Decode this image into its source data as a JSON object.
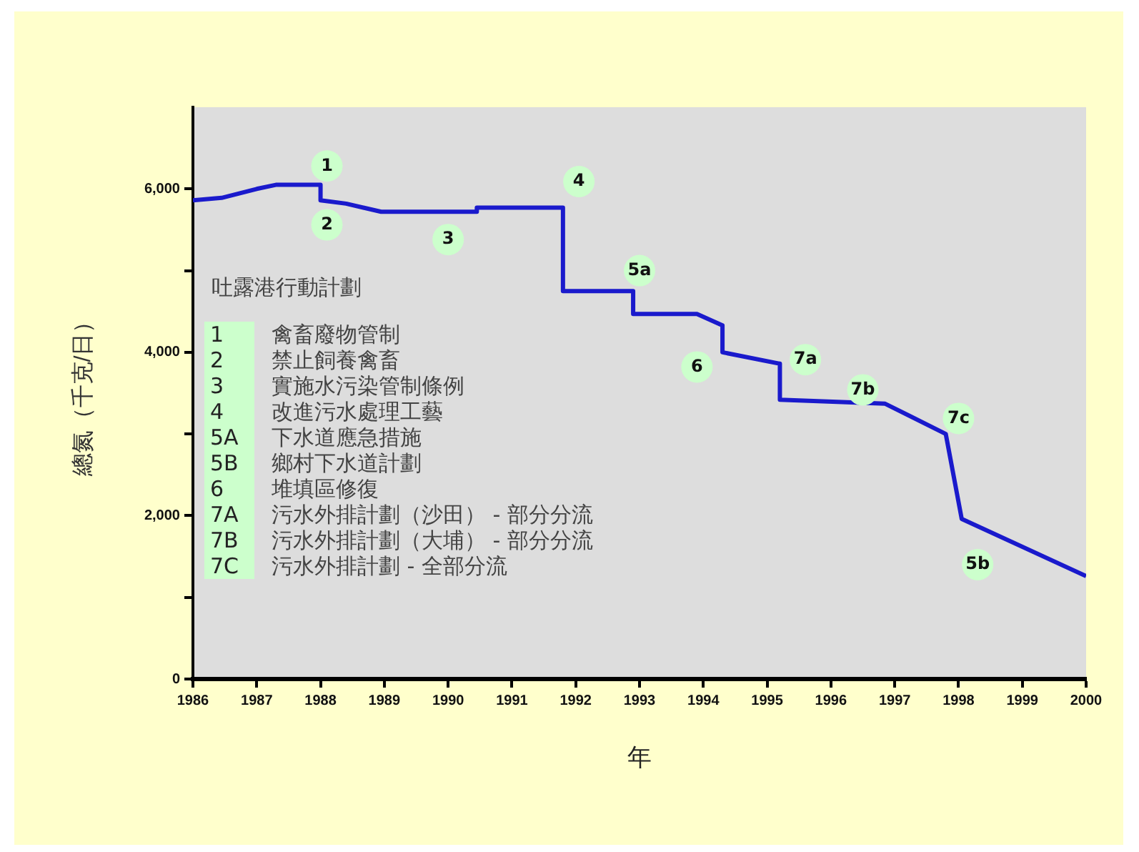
{
  "chart_data": {
    "type": "line",
    "xlabel": "年",
    "ylabel": "總氮（千克/日）",
    "x": [
      1986,
      1986.45,
      1987,
      1987.3,
      1988,
      1988,
      1988.4,
      1988.95,
      1990.45,
      1990.45,
      1991.8,
      1991.8,
      1992.9,
      1992.9,
      1993.9,
      1994.3,
      1994.3,
      1995.2,
      1995.2,
      1996.85,
      1997.8,
      1998.05,
      2000
    ],
    "series": [
      {
        "color": "#1a1acc",
        "values": [
          5860,
          5890,
          6000,
          6050,
          6050,
          5860,
          5820,
          5720,
          5720,
          5770,
          5770,
          4750,
          4750,
          4470,
          4470,
          4330,
          4000,
          3860,
          3420,
          3370,
          3000,
          1960,
          1260
        ]
      }
    ],
    "xlim": [
      1986,
      2000
    ],
    "xticks": [
      1986,
      1987,
      1988,
      1989,
      1990,
      1991,
      1992,
      1993,
      1994,
      1995,
      1996,
      1997,
      1998,
      1999,
      2000
    ],
    "ylim": [
      0,
      7000
    ],
    "yticks": [
      0,
      {
        "value": 1000,
        "label": null
      },
      {
        "value": 2000,
        "label": "2,000"
      },
      {
        "value": 3000,
        "label": null
      },
      {
        "value": 4000,
        "label": "4,000"
      },
      {
        "value": 5000,
        "label": null
      },
      {
        "value": 6000,
        "label": "6,000"
      }
    ],
    "grid": false,
    "legend": false,
    "marker": "none",
    "line_style": "solid",
    "annotations": [
      {
        "text": "1",
        "x": 1988.1,
        "y": 6280
      },
      {
        "text": "2",
        "x": 1988.1,
        "y": 5560
      },
      {
        "text": "3",
        "x": 1990,
        "y": 5380
      },
      {
        "text": "4",
        "x": 1992.05,
        "y": 6090
      },
      {
        "text": "5a",
        "x": 1993,
        "y": 5000
      },
      {
        "text": "6",
        "x": 1993.9,
        "y": 3820
      },
      {
        "text": "7a",
        "x": 1995.6,
        "y": 3910
      },
      {
        "text": "7b",
        "x": 1996.5,
        "y": 3540
      },
      {
        "text": "7c",
        "x": 1998,
        "y": 3190
      },
      {
        "text": "5b",
        "x": 1998.3,
        "y": 1400
      },
      "吐露港行動計劃",
      "1 禽畜廢物管制",
      "2 禁止飼養禽畜",
      "3 實施水污染管制條例",
      "4 改進污水處理工藝",
      "5A 下水道應急措施",
      "5B 鄉村下水道計劃",
      "6 堆填區修復",
      "7A 污水外排計劃（沙田） - 部分分流",
      "7B 污水外排計劃（大埔） - 部分分流",
      "7C 污水外排計劃 - 全部分流"
    ]
  }
}
